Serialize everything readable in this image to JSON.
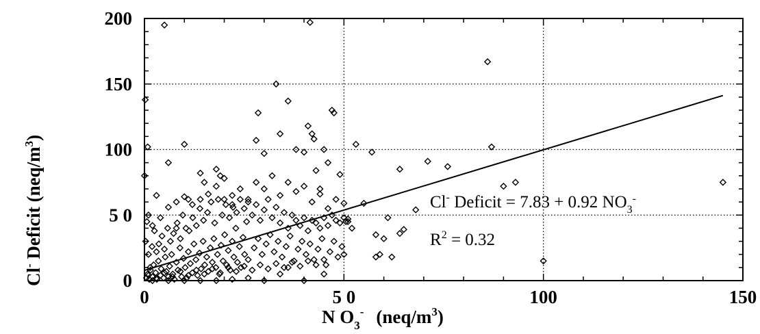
{
  "chart_data": {
    "type": "scatter",
    "xlabel": {
      "main": "N O",
      "sub": "3",
      "sup": "-",
      "unit_pre": "(neq/m",
      "unit_sup": "3",
      "unit_post": ")"
    },
    "ylabel": {
      "pre": "Cl",
      "sup": "-",
      "main": " Deficit  (neq/m",
      "unit_sup": "3",
      "post": ")"
    },
    "xlim": [
      0,
      150
    ],
    "ylim": [
      0,
      200
    ],
    "x_ticks": [
      0,
      50,
      100,
      150
    ],
    "x_tick_labels": [
      "0",
      "5 0",
      "100",
      "150"
    ],
    "y_ticks": [
      0,
      50,
      100,
      150,
      200
    ],
    "y_tick_labels": [
      "0",
      "5 0",
      "100",
      "150",
      "200"
    ],
    "grid": true,
    "fit": {
      "intercept": 7.83,
      "slope": 0.92,
      "x_range": [
        0,
        145
      ]
    },
    "equation": {
      "lhs_pre": "Cl",
      "lhs_sup": "-",
      "mid": " Deficit = 7.83 + 0.92 NO",
      "sub": "3",
      "sup": "-"
    },
    "r2": {
      "pre": "R",
      "sup": "2",
      "post": " = 0.32"
    },
    "points": [
      [
        0.5,
        2
      ],
      [
        0.8,
        5
      ],
      [
        1.2,
        1
      ],
      [
        1.5,
        8
      ],
      [
        2,
        3
      ],
      [
        2.3,
        12
      ],
      [
        2.8,
        6
      ],
      [
        3.1,
        1
      ],
      [
        3.5,
        15
      ],
      [
        4,
        4
      ],
      [
        4.2,
        9
      ],
      [
        4.8,
        2
      ],
      [
        5.2,
        18
      ],
      [
        5.5,
        7
      ],
      [
        6,
        3
      ],
      [
        6.3,
        11
      ],
      [
        6.8,
        20
      ],
      [
        7.1,
        5
      ],
      [
        7.5,
        1
      ],
      [
        8,
        14
      ],
      [
        8.4,
        8
      ],
      [
        8.9,
        25
      ],
      [
        9.3,
        3
      ],
      [
        9.8,
        17
      ],
      [
        10.2,
        10
      ],
      [
        10.6,
        2
      ],
      [
        11,
        22
      ],
      [
        11.5,
        13
      ],
      [
        12,
        6
      ],
      [
        12.4,
        28
      ],
      [
        12.9,
        16
      ],
      [
        13.3,
        4
      ],
      [
        13.8,
        21
      ],
      [
        14.2,
        9
      ],
      [
        14.7,
        30
      ],
      [
        15.1,
        12
      ],
      [
        15.6,
        18
      ],
      [
        16,
        7
      ],
      [
        16.5,
        25
      ],
      [
        17,
        14
      ],
      [
        17.4,
        32
      ],
      [
        17.9,
        10
      ],
      [
        18.3,
        20
      ],
      [
        18.8,
        5
      ],
      [
        19.2,
        27
      ],
      [
        19.7,
        15
      ],
      [
        20.1,
        35
      ],
      [
        20.6,
        12
      ],
      [
        21,
        23
      ],
      [
        21.5,
        8
      ],
      [
        22,
        30
      ],
      [
        22.4,
        18
      ],
      [
        22.9,
        40
      ],
      [
        23.3,
        14
      ],
      [
        23.8,
        26
      ],
      [
        24.2,
        10
      ],
      [
        24.7,
        33
      ],
      [
        25.1,
        20
      ],
      [
        25.6,
        45
      ],
      [
        26,
        16
      ],
      [
        0.3,
        30
      ],
      [
        0.6,
        45
      ],
      [
        1,
        20
      ],
      [
        1.4,
        10
      ],
      [
        1.9,
        26
      ],
      [
        2.5,
        38
      ],
      [
        3,
        22
      ],
      [
        3.6,
        28
      ],
      [
        4.4,
        34
      ],
      [
        5,
        24
      ],
      [
        5.8,
        40
      ],
      [
        6.5,
        30
      ],
      [
        7.3,
        36
      ],
      [
        8.2,
        44
      ],
      [
        9,
        32
      ],
      [
        9.6,
        50
      ],
      [
        10.4,
        40
      ],
      [
        11.2,
        38
      ],
      [
        12.1,
        48
      ],
      [
        13,
        42
      ],
      [
        13.9,
        55
      ],
      [
        14.8,
        46
      ],
      [
        15.8,
        52
      ],
      [
        16.7,
        60
      ],
      [
        17.6,
        44
      ],
      [
        18.5,
        62
      ],
      [
        19.5,
        50
      ],
      [
        20.4,
        58
      ],
      [
        21.3,
        48
      ],
      [
        22.2,
        56
      ],
      [
        23.1,
        52
      ],
      [
        24,
        62
      ],
      [
        25,
        55
      ],
      [
        26,
        60
      ],
      [
        27,
        50
      ],
      [
        28,
        58
      ],
      [
        29,
        46
      ],
      [
        30,
        54
      ],
      [
        31,
        62
      ],
      [
        32,
        48
      ],
      [
        33,
        56
      ],
      [
        34,
        44
      ],
      [
        35,
        52
      ],
      [
        36,
        40
      ],
      [
        37,
        50
      ],
      [
        38,
        46
      ],
      [
        39,
        42
      ],
      [
        40,
        48
      ],
      [
        41,
        38
      ],
      [
        42,
        46
      ],
      [
        43,
        44
      ],
      [
        44,
        40
      ],
      [
        45,
        48
      ],
      [
        46,
        42
      ],
      [
        47,
        50
      ],
      [
        48,
        46
      ],
      [
        49,
        44
      ],
      [
        50,
        48
      ],
      [
        51,
        45
      ],
      [
        27.5,
        25
      ],
      [
        28.5,
        32
      ],
      [
        29.5,
        20
      ],
      [
        30.5,
        28
      ],
      [
        31.5,
        35
      ],
      [
        32.5,
        22
      ],
      [
        33.5,
        30
      ],
      [
        34.5,
        18
      ],
      [
        35.5,
        26
      ],
      [
        36.5,
        34
      ],
      [
        37.5,
        15
      ],
      [
        38.5,
        24
      ],
      [
        39.5,
        30
      ],
      [
        40.5,
        20
      ],
      [
        41.5,
        28
      ],
      [
        42.5,
        16
      ],
      [
        43.5,
        24
      ],
      [
        44.5,
        32
      ],
      [
        45.5,
        12
      ],
      [
        46.5,
        22
      ],
      [
        47.5,
        30
      ],
      [
        48.5,
        18
      ],
      [
        49.5,
        26
      ],
      [
        30,
        70
      ],
      [
        32,
        80
      ],
      [
        34,
        65
      ],
      [
        36,
        75
      ],
      [
        38,
        68
      ],
      [
        40,
        72
      ],
      [
        42,
        60
      ],
      [
        44,
        66
      ],
      [
        46,
        55
      ],
      [
        48,
        62
      ],
      [
        28,
        75
      ],
      [
        26,
        62
      ],
      [
        24,
        70
      ],
      [
        22,
        65
      ],
      [
        20,
        78
      ],
      [
        18,
        72
      ],
      [
        16,
        66
      ],
      [
        14,
        62
      ],
      [
        12,
        58
      ],
      [
        10,
        64
      ],
      [
        8,
        60
      ],
      [
        6,
        56
      ],
      [
        4,
        48
      ],
      [
        2,
        42
      ],
      [
        0,
        80
      ],
      [
        0.2,
        138
      ],
      [
        0.8,
        102
      ],
      [
        1,
        50
      ],
      [
        3,
        65
      ],
      [
        5,
        195
      ],
      [
        6,
        90
      ],
      [
        8,
        40
      ],
      [
        10,
        104
      ],
      [
        11,
        62
      ],
      [
        14,
        82
      ],
      [
        15,
        75
      ],
      [
        18,
        85
      ],
      [
        19,
        80
      ],
      [
        20,
        62
      ],
      [
        22,
        58
      ],
      [
        28,
        107
      ],
      [
        28.5,
        128
      ],
      [
        30,
        97
      ],
      [
        33,
        150
      ],
      [
        34,
        112
      ],
      [
        36,
        137
      ],
      [
        38,
        100
      ],
      [
        40,
        98
      ],
      [
        41,
        118
      ],
      [
        41.5,
        197
      ],
      [
        42,
        112
      ],
      [
        42.5,
        108
      ],
      [
        43,
        84
      ],
      [
        44,
        70
      ],
      [
        45,
        100
      ],
      [
        46,
        90
      ],
      [
        47,
        130
      ],
      [
        47.5,
        128
      ],
      [
        49,
        81
      ],
      [
        50,
        59
      ],
      [
        50.5,
        45
      ],
      [
        51,
        47
      ],
      [
        52,
        40
      ],
      [
        53,
        104
      ],
      [
        55,
        59
      ],
      [
        57,
        98
      ],
      [
        58,
        35
      ],
      [
        59,
        20
      ],
      [
        61,
        48
      ],
      [
        64,
        85
      ],
      [
        65,
        39
      ],
      [
        68,
        54
      ],
      [
        71,
        91
      ],
      [
        76,
        87
      ],
      [
        86,
        167
      ],
      [
        87,
        102
      ],
      [
        90,
        72
      ],
      [
        93,
        75
      ],
      [
        100,
        15
      ],
      [
        145,
        75
      ],
      [
        58,
        18
      ],
      [
        60,
        32
      ],
      [
        62,
        18
      ],
      [
        64,
        36
      ],
      [
        40,
        0
      ],
      [
        30,
        0
      ],
      [
        34,
        5
      ],
      [
        45,
        5
      ],
      [
        50,
        20
      ],
      [
        36,
        10
      ],
      [
        26,
        2
      ],
      [
        22,
        1
      ],
      [
        18,
        0
      ],
      [
        14,
        0
      ],
      [
        10,
        0
      ],
      [
        6,
        0
      ],
      [
        2,
        0
      ],
      [
        1,
        4
      ],
      [
        3,
        2
      ],
      [
        5,
        6
      ],
      [
        7,
        3
      ],
      [
        9,
        7
      ],
      [
        11,
        4
      ],
      [
        13,
        8
      ],
      [
        15,
        5
      ],
      [
        17,
        9
      ],
      [
        19,
        6
      ],
      [
        21,
        10
      ],
      [
        23,
        7
      ],
      [
        25,
        11
      ],
      [
        27,
        8
      ],
      [
        29,
        12
      ],
      [
        31,
        9
      ],
      [
        33,
        13
      ],
      [
        35,
        10
      ],
      [
        37,
        14
      ],
      [
        39,
        11
      ],
      [
        41,
        15
      ],
      [
        43,
        12
      ],
      [
        45,
        16
      ]
    ]
  }
}
